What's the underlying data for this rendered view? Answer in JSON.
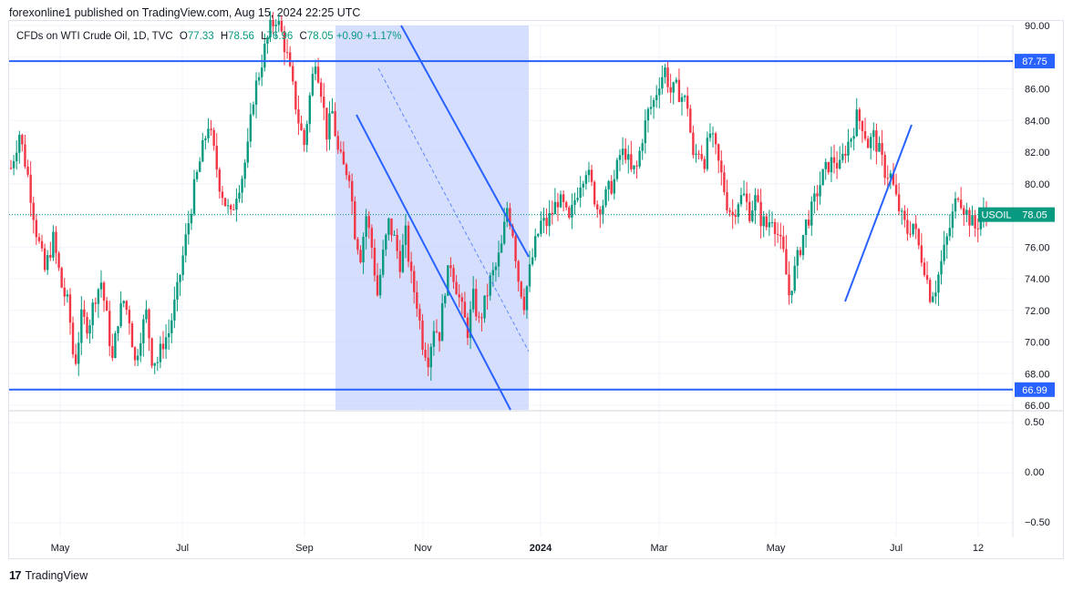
{
  "header": {
    "published": "forexonline1 published on TradingView.com, Aug 15, 2024 22:25 UTC"
  },
  "legend": {
    "symbol": "CFDs on WTI Crude Oil, 1D, TVC",
    "open_label": "O",
    "open": "77.33",
    "high_label": "H",
    "high": "78.56",
    "low_label": "L",
    "low": "76.96",
    "close_label": "C",
    "close": "78.05",
    "change": "+0.90 +1.17%"
  },
  "footer": {
    "brand": "TradingView",
    "logo": "17"
  },
  "colors": {
    "up": "#089981",
    "down": "#f23645",
    "line": "#2962ff",
    "channel_fill": "#c7d3fb",
    "grid": "#f0f3fa"
  },
  "chart_data": {
    "type": "candlestick",
    "title": "CFDs on WTI Crude Oil, 1D, TVC",
    "y_range": [
      66,
      90
    ],
    "y_ticks": [
      "90.00",
      "88.00",
      "86.00",
      "84.00",
      "82.00",
      "80.00",
      "78.00",
      "76.00",
      "74.00",
      "72.00",
      "70.00",
      "68.00",
      "66.00"
    ],
    "x_ticks": [
      "May",
      "Jul",
      "Sep",
      "Nov",
      "2024",
      "Mar",
      "May",
      "Jul",
      "12"
    ],
    "price_labels": [
      {
        "text": "87.75",
        "value": 87.75,
        "kind": "horizontal-line"
      },
      {
        "text": "66.99",
        "value": 66.99,
        "kind": "horizontal-line"
      },
      {
        "text": "78.05",
        "value": 78.05,
        "kind": "last-price",
        "name": "USOIL"
      }
    ],
    "last_price": 78.05,
    "horizontal_lines": [
      87.75,
      66.99
    ],
    "price_path": [
      [
        0,
        81.0
      ],
      [
        6,
        83.2
      ],
      [
        12,
        80.5
      ],
      [
        18,
        77.0
      ],
      [
        24,
        74.5
      ],
      [
        30,
        76.5
      ],
      [
        36,
        73.5
      ],
      [
        41,
        72.2
      ],
      [
        45,
        68.3
      ],
      [
        50,
        71.5
      ],
      [
        55,
        71.0
      ],
      [
        60,
        73.0
      ],
      [
        64,
        73.8
      ],
      [
        68,
        71.5
      ],
      [
        72,
        68.8
      ],
      [
        76,
        71.5
      ],
      [
        80,
        72.6
      ],
      [
        84,
        71.5
      ],
      [
        88,
        68.7
      ],
      [
        92,
        70.5
      ],
      [
        96,
        71.8
      ],
      [
        100,
        69.0
      ],
      [
        104,
        68.8
      ],
      [
        108,
        70.0
      ],
      [
        112,
        70.6
      ],
      [
        118,
        73.2
      ],
      [
        124,
        76.5
      ],
      [
        130,
        79.7
      ],
      [
        136,
        82.2
      ],
      [
        140,
        83.8
      ],
      [
        144,
        82.0
      ],
      [
        148,
        80.0
      ],
      [
        152,
        78.8
      ],
      [
        156,
        77.9
      ],
      [
        160,
        79.5
      ],
      [
        164,
        80.5
      ],
      [
        168,
        82.2
      ],
      [
        172,
        85.5
      ],
      [
        176,
        87.0
      ],
      [
        180,
        88.5
      ],
      [
        184,
        89.8
      ],
      [
        188,
        90.5
      ],
      [
        192,
        89.5
      ],
      [
        196,
        88.0
      ],
      [
        200,
        86.0
      ],
      [
        204,
        84.0
      ],
      [
        208,
        82.5
      ],
      [
        212,
        85.5
      ],
      [
        216,
        88.0
      ],
      [
        220,
        86.0
      ],
      [
        224,
        83.2
      ],
      [
        228,
        84.5
      ],
      [
        232,
        82.0
      ],
      [
        236,
        81.0
      ],
      [
        240,
        80.7
      ],
      [
        244,
        77.0
      ],
      [
        248,
        75.5
      ],
      [
        252,
        78.0
      ],
      [
        256,
        76.0
      ],
      [
        260,
        73.0
      ],
      [
        264,
        75.5
      ],
      [
        268,
        77.5
      ],
      [
        272,
        76.5
      ],
      [
        276,
        75.0
      ],
      [
        280,
        76.8
      ],
      [
        284,
        74.0
      ],
      [
        288,
        72.5
      ],
      [
        292,
        70.0
      ],
      [
        296,
        69.0
      ],
      [
        300,
        71.0
      ],
      [
        304,
        70.5
      ],
      [
        308,
        73.5
      ],
      [
        312,
        75.0
      ],
      [
        316,
        73.5
      ],
      [
        320,
        72.0
      ],
      [
        324,
        70.7
      ],
      [
        328,
        72.8
      ],
      [
        332,
        71.2
      ],
      [
        336,
        72.4
      ],
      [
        340,
        73.9
      ],
      [
        344,
        74.7
      ],
      [
        348,
        76.0
      ],
      [
        352,
        78.5
      ],
      [
        356,
        77.0
      ],
      [
        360,
        74.0
      ],
      [
        364,
        72.5
      ],
      [
        368,
        74.5
      ],
      [
        372,
        76.2
      ],
      [
        376,
        77.5
      ],
      [
        380,
        77.5
      ],
      [
        384,
        78.2
      ],
      [
        388,
        79.0
      ],
      [
        392,
        78.5
      ],
      [
        396,
        77.5
      ],
      [
        400,
        79.0
      ],
      [
        404,
        80.2
      ],
      [
        408,
        81.0
      ],
      [
        412,
        79.8
      ],
      [
        416,
        78.5
      ],
      [
        420,
        78.8
      ],
      [
        424,
        79.6
      ],
      [
        428,
        80.2
      ],
      [
        432,
        81.8
      ],
      [
        436,
        82.0
      ],
      [
        440,
        80.7
      ],
      [
        444,
        81.0
      ],
      [
        448,
        83.0
      ],
      [
        452,
        84.5
      ],
      [
        456,
        85.2
      ],
      [
        460,
        86.5
      ],
      [
        464,
        87.2
      ],
      [
        468,
        85.8
      ],
      [
        472,
        86.0
      ],
      [
        476,
        85.5
      ],
      [
        480,
        85.0
      ],
      [
        484,
        81.5
      ],
      [
        488,
        82.2
      ],
      [
        492,
        81.5
      ],
      [
        496,
        83.2
      ],
      [
        500,
        82.0
      ],
      [
        504,
        80.5
      ],
      [
        508,
        78.8
      ],
      [
        512,
        78.0
      ],
      [
        516,
        79.0
      ],
      [
        520,
        79.2
      ],
      [
        524,
        78.2
      ],
      [
        528,
        79.0
      ],
      [
        532,
        77.8
      ],
      [
        536,
        77.3
      ],
      [
        540,
        78.0
      ],
      [
        544,
        76.8
      ],
      [
        548,
        75.5
      ],
      [
        552,
        73.0
      ],
      [
        556,
        74.5
      ],
      [
        560,
        76.0
      ],
      [
        564,
        77.5
      ],
      [
        568,
        78.3
      ],
      [
        572,
        79.5
      ],
      [
        576,
        80.5
      ],
      [
        580,
        81.2
      ],
      [
        584,
        81.5
      ],
      [
        588,
        81.0
      ],
      [
        592,
        82.2
      ],
      [
        596,
        83.0
      ],
      [
        600,
        84.2
      ],
      [
        604,
        83.8
      ],
      [
        608,
        82.5
      ],
      [
        612,
        83.0
      ],
      [
        616,
        82.0
      ],
      [
        620,
        80.8
      ],
      [
        624,
        80.5
      ],
      [
        628,
        79.0
      ],
      [
        632,
        77.8
      ],
      [
        636,
        77.0
      ],
      [
        640,
        77.5
      ],
      [
        644,
        76.0
      ],
      [
        648,
        74.8
      ],
      [
        652,
        73.0
      ],
      [
        656,
        73.5
      ],
      [
        660,
        75.0
      ],
      [
        664,
        76.5
      ],
      [
        668,
        78.0
      ],
      [
        672,
        79.5
      ],
      [
        676,
        78.5
      ],
      [
        680,
        77.8
      ],
      [
        684,
        77.2
      ],
      [
        688,
        77.8
      ],
      [
        692,
        78.05
      ]
    ]
  }
}
